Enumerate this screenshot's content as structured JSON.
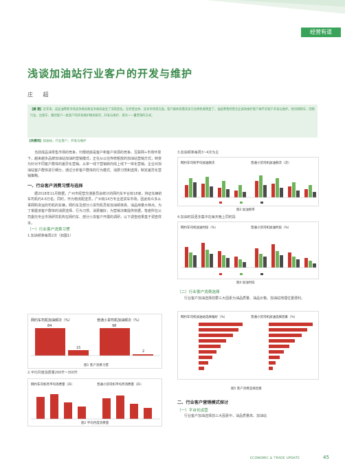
{
  "header": {
    "section": "经营有道"
  },
  "title": "浅谈加油站行业客户的开发与维护",
  "author": "庄 超",
  "abstract": {
    "label": "【摘 要】",
    "text": "近年来，成品油零售市场竞争格局和竞争格局发生了深刻变化，在经营主体、竞争市场等方面，客户群体及需求多元化特色渐明显了，油品零售经营企业高效维护客户离不开客户开发与维护。经对网购车、团购行业、出租车、集团客户一类客户的开发维护模式研究，开发与维护，或为一一量营销的方式。"
  },
  "keywords": {
    "label": "【关键词】",
    "text": "加油站；行业客户；开发与维护"
  },
  "left": {
    "intro": "当前成品油零售市场的竞争，归根结底是客户和客户资源的竞争。互联网+市场环境下，越来越多品牌加油站加油的营销模式，正在从以往传统粗放的加油站营销方式，转变为针对不同客户群体的差异化营销。从单一线下营销转向线上线下一体化营销。企业对加油站客户群体进行细分，通过分析客户群体的行为模式、消费习惯和选择，制定差异化营销策略。",
    "h_one": "一、行业客户消费习惯与选择",
    "para_one": "据2018年11月数据，广州市经营交通委员会统计的网约车平台有18家，持证车辆的车司机约4.6万名。同时，作为物流配送员，广州有14万专业送货车市场，因此有众多从事网购货运的司机的车辆，网约车及部分小货司机员有加油频率高、油品用量大特点。为了掌握该客户群体的消费选择、行为习惯、消费偏好，为营销决策提供依据，笔者所在公司委托专业市场研究机构在网约车、部分小货客户开展的调研，以下调查结果基于调查样本。",
    "h_one_one": "（一）行业客户消费习惯",
    "item1": "1.加油频率每周2次（如图1）",
    "fig1_caption": "图1 客户消费习惯",
    "item2": "2.平均月度消费量260升~300升",
    "fig2_caption": "图2 平均月度消费量"
  },
  "right": {
    "item3": "3.加油频率每周3~4次为主",
    "fig3_caption": "图3 加油频率",
    "item4": "4.加油时段更多集中在每天晚上同时段",
    "fig4_caption": "图4 加油时段",
    "h_one_two": "（二）行业客户消费选择",
    "para_two": "行业客户加油选择前要三大因素为油品质量、油品价格、加油站地理位置便利。",
    "fig5_caption": "图5 客户消费选择因素",
    "h_two": "二、行业客户营销模式探讨",
    "h_two_one": "（一）平台化运营",
    "para_three": "行业客户加油选择前三大因素中，油品质量高、加油站"
  },
  "figures": {
    "fig1": {
      "left_title": "网约车司机加油频次（%）",
      "right_title": "普通小货司机加油频次（%）",
      "left_values": [
        84,
        15
      ],
      "right_values": [
        98,
        2
      ]
    },
    "fig2": {
      "left_title": "网约车司机月平均消费量（升）",
      "right_title": "普通小货司机平均月消费量（升）"
    },
    "fig3": {
      "left_title": "网约车司机平均加油频次",
      "right_title": "普通小货司机加油频次（次）"
    },
    "fig4": {
      "left_title": "网约车司机加油时段（%）",
      "right_title": "普通小货司机加油时段（%）"
    },
    "fig5": {
      "left_title": "网约车司机加油站选择偏好（%）",
      "right_title": "普通小货司机加油选择因素（%）"
    }
  },
  "footer": {
    "text": "ECONOMIC & TRADE UPDATE",
    "page": "45"
  },
  "colors": {
    "accent": "#3a8a4a",
    "red": "#c9342c",
    "green": "#6db35a",
    "dark": "#4a4a4a"
  }
}
